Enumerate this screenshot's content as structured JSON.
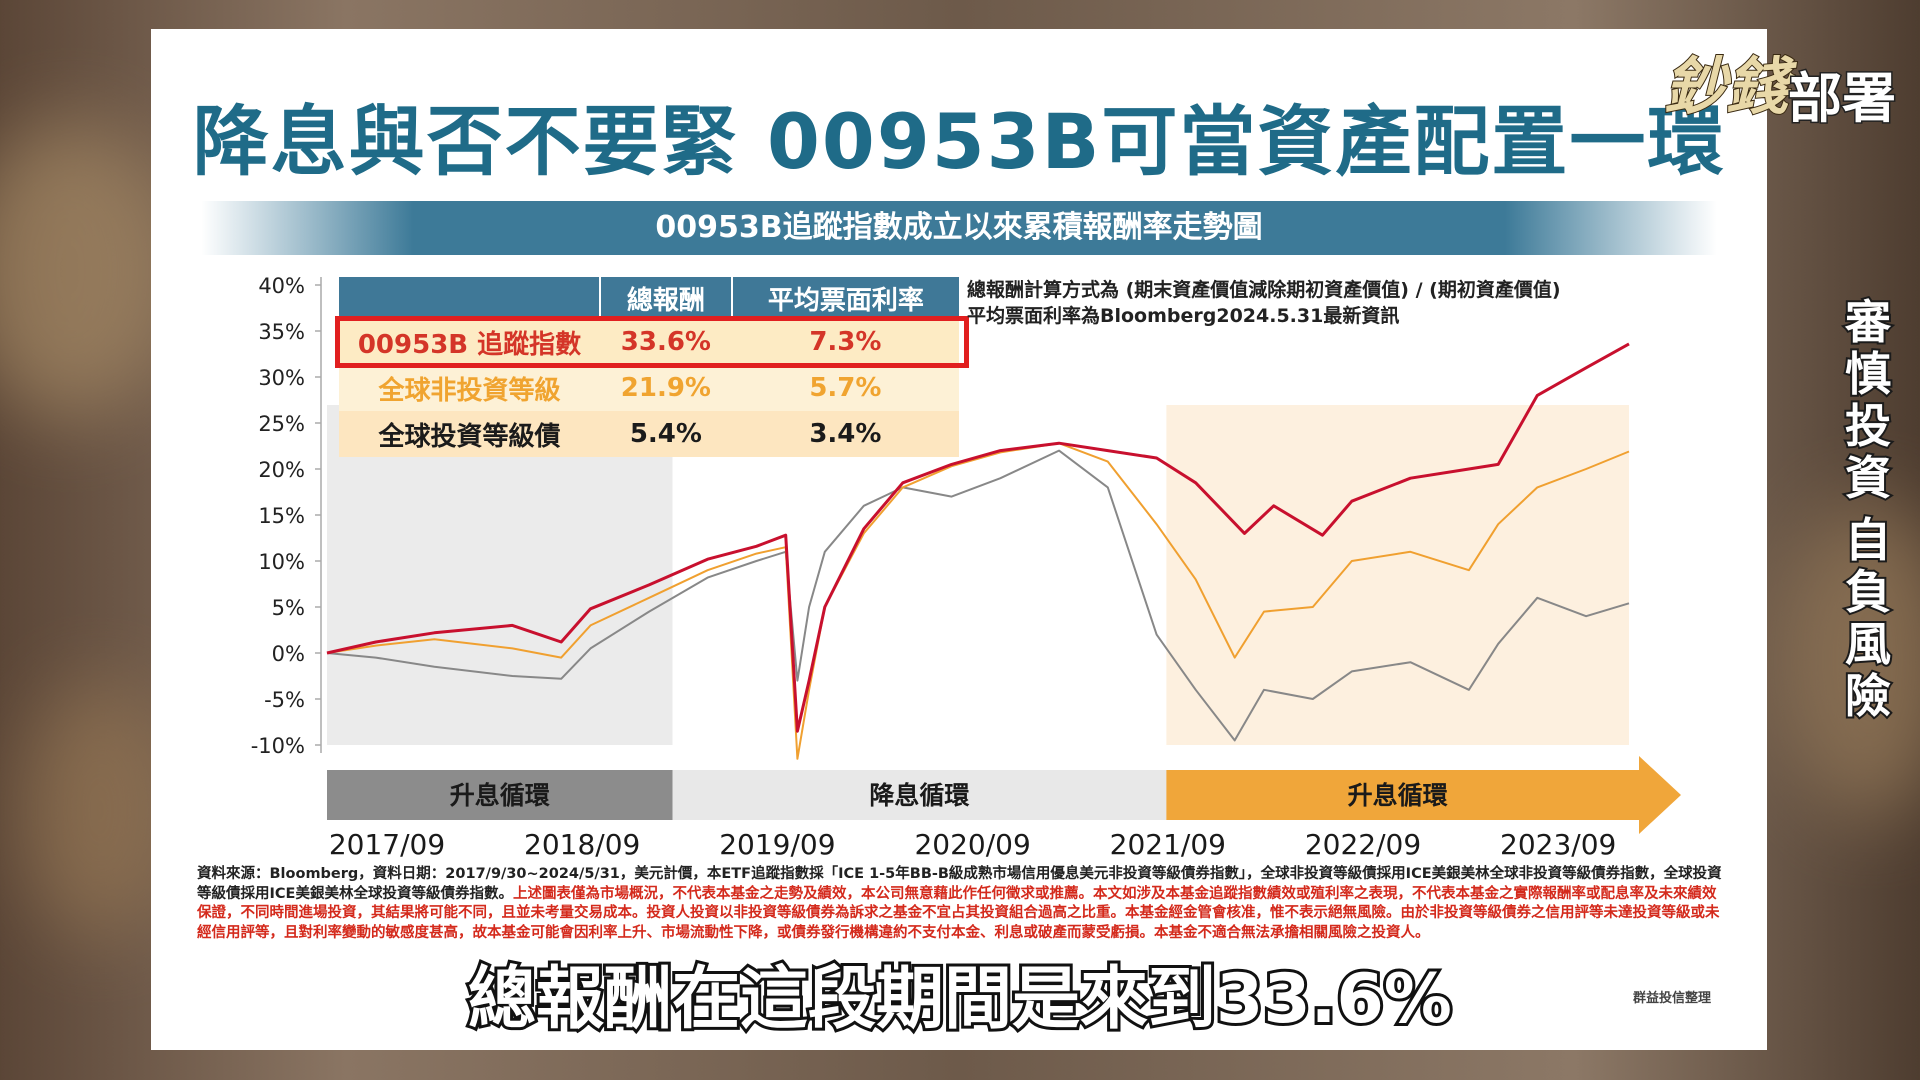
{
  "title": "降息與否不要緊 00953B可當資產配置一環",
  "subtitle": "00953B追蹤指數成立以來累積報酬率走勢圖",
  "logo": {
    "part1": "鈔錢",
    "part2": "部署"
  },
  "side_text_right": [
    "審",
    "慎",
    "投",
    "資"
  ],
  "side_text_right2": [
    "自",
    "負",
    "風",
    "險"
  ],
  "table": {
    "headers": [
      "",
      "總報酬",
      "平均票面利率"
    ],
    "rows": [
      {
        "name": "00953B 追蹤指數",
        "total_return": "33.6%",
        "coupon": "7.3%"
      },
      {
        "name": "全球非投資等級",
        "total_return": "21.9%",
        "coupon": "5.7%"
      },
      {
        "name": "全球投資等級債",
        "total_return": "5.4%",
        "coupon": "3.4%"
      }
    ]
  },
  "notes": [
    "總報酬計算方式為 (期末資產價值減除期初資產價值) / (期初資產價值)",
    "平均票面利率為Bloomberg2024.5.31最新資訊"
  ],
  "cycles": [
    {
      "label": "升息循環",
      "color": "#8c8c8c",
      "start": 2017.75,
      "end": 2019.52
    },
    {
      "label": "降息循環",
      "color": "#e8e8e8",
      "start": 2019.52,
      "end": 2022.05
    },
    {
      "label": "升息循環",
      "color": "#f0a63a",
      "start": 2022.05,
      "end": 2024.42
    }
  ],
  "chart_data": {
    "type": "line",
    "title": "00953B追蹤指數成立以來累積報酬率走勢圖",
    "x_tick_labels": [
      "2017/09",
      "2018/09",
      "2019/09",
      "2020/09",
      "2021/09",
      "2022/09",
      "2023/09"
    ],
    "x_tick_values": [
      2017.75,
      2018.75,
      2019.75,
      2020.75,
      2021.75,
      2022.75,
      2023.75
    ],
    "y_tick_labels": [
      "40%",
      "35%",
      "30%",
      "25%",
      "20%",
      "15%",
      "10%",
      "5%",
      "0%",
      "-5%",
      "-10%"
    ],
    "ylim": [
      -10,
      40
    ],
    "xlim": [
      2017.75,
      2024.42
    ],
    "series": [
      {
        "name": "00953B 追蹤指數",
        "color": "#c8102e",
        "points": [
          [
            2017.75,
            0
          ],
          [
            2018.0,
            1.2
          ],
          [
            2018.3,
            2.2
          ],
          [
            2018.7,
            3.0
          ],
          [
            2018.95,
            1.2
          ],
          [
            2019.1,
            4.8
          ],
          [
            2019.4,
            7.4
          ],
          [
            2019.7,
            10.2
          ],
          [
            2019.95,
            11.6
          ],
          [
            2020.1,
            12.8
          ],
          [
            2020.16,
            -8.5
          ],
          [
            2020.22,
            -3.0
          ],
          [
            2020.3,
            5.0
          ],
          [
            2020.5,
            13.5
          ],
          [
            2020.7,
            18.5
          ],
          [
            2020.95,
            20.5
          ],
          [
            2021.2,
            22.0
          ],
          [
            2021.5,
            22.8
          ],
          [
            2021.75,
            22.0
          ],
          [
            2022.0,
            21.2
          ],
          [
            2022.2,
            18.5
          ],
          [
            2022.45,
            13.0
          ],
          [
            2022.6,
            16.0
          ],
          [
            2022.85,
            12.8
          ],
          [
            2023.0,
            16.5
          ],
          [
            2023.3,
            19.0
          ],
          [
            2023.6,
            20.0
          ],
          [
            2023.75,
            20.5
          ],
          [
            2023.95,
            28.0
          ],
          [
            2024.2,
            31.0
          ],
          [
            2024.42,
            33.6
          ]
        ]
      },
      {
        "name": "全球非投資等級",
        "color": "#f0a030",
        "points": [
          [
            2017.75,
            0
          ],
          [
            2018.0,
            0.8
          ],
          [
            2018.3,
            1.5
          ],
          [
            2018.7,
            0.5
          ],
          [
            2018.95,
            -0.5
          ],
          [
            2019.1,
            3.0
          ],
          [
            2019.4,
            6.0
          ],
          [
            2019.7,
            9.0
          ],
          [
            2019.95,
            10.8
          ],
          [
            2020.1,
            11.5
          ],
          [
            2020.16,
            -11.5
          ],
          [
            2020.22,
            -4.0
          ],
          [
            2020.3,
            5.0
          ],
          [
            2020.5,
            13.0
          ],
          [
            2020.7,
            18.0
          ],
          [
            2020.95,
            20.3
          ],
          [
            2021.2,
            21.8
          ],
          [
            2021.5,
            22.8
          ],
          [
            2021.75,
            20.8
          ],
          [
            2022.0,
            14.0
          ],
          [
            2022.2,
            8.0
          ],
          [
            2022.4,
            -0.5
          ],
          [
            2022.55,
            4.5
          ],
          [
            2022.8,
            5.0
          ],
          [
            2023.0,
            10.0
          ],
          [
            2023.3,
            11.0
          ],
          [
            2023.6,
            9.0
          ],
          [
            2023.75,
            14.0
          ],
          [
            2023.95,
            18.0
          ],
          [
            2024.2,
            20.0
          ],
          [
            2024.42,
            21.9
          ]
        ]
      },
      {
        "name": "全球投資等級債",
        "color": "#888888",
        "points": [
          [
            2017.75,
            0
          ],
          [
            2018.0,
            -0.5
          ],
          [
            2018.3,
            -1.5
          ],
          [
            2018.7,
            -2.5
          ],
          [
            2018.95,
            -2.8
          ],
          [
            2019.1,
            0.5
          ],
          [
            2019.4,
            4.5
          ],
          [
            2019.7,
            8.2
          ],
          [
            2019.95,
            10.0
          ],
          [
            2020.1,
            11.0
          ],
          [
            2020.16,
            -3.0
          ],
          [
            2020.22,
            5.0
          ],
          [
            2020.3,
            11.0
          ],
          [
            2020.5,
            16.0
          ],
          [
            2020.7,
            18.0
          ],
          [
            2020.95,
            17.0
          ],
          [
            2021.2,
            19.0
          ],
          [
            2021.5,
            22.0
          ],
          [
            2021.75,
            18.0
          ],
          [
            2022.0,
            2.0
          ],
          [
            2022.2,
            -4.0
          ],
          [
            2022.4,
            -9.5
          ],
          [
            2022.55,
            -4.0
          ],
          [
            2022.8,
            -5.0
          ],
          [
            2023.0,
            -2.0
          ],
          [
            2023.3,
            -1.0
          ],
          [
            2023.6,
            -4.0
          ],
          [
            2023.75,
            1.0
          ],
          [
            2023.95,
            6.0
          ],
          [
            2024.2,
            4.0
          ],
          [
            2024.42,
            5.4
          ]
        ]
      }
    ]
  },
  "disclaimer": {
    "black": "資料來源：Bloomberg，資料日期：2017/9/30~2024/5/31，美元計價，本ETF追蹤指數採「ICE 1-5年BB-B級成熟市場信用優息美元非投資等級債券指數」，全球非投資等級債採用ICE美銀美林全球非投資等級債券指數，全球投資等級債採用ICE美銀美林全球投資等級債券指數。",
    "red": "上述圖表僅為市場概況，不代表本基金之走勢及績效，本公司無意藉此作任何徵求或推薦。本文如涉及本基金追蹤指數績效或殖利率之表現，不代表本基金之實際報酬率或配息率及未來績效保證，不同時間進場投資，其結果將可能不同，且並未考量交易成本。投資人投資以非投資等級債券為訴求之基金不宜占其投資組合過高之比重。本基金經金管會核准，惟不表示絕無風險。由於非投資等級債券之信用評等未達投資等級或未經信用評等，且對利率變動的敏感度甚高，故本基金可能會因利率上升、市場流動性下降，或債券發行機構違約不支付本金、利息或破產而蒙受虧損。本基金不適合無法承擔相關風險之投資人。"
  },
  "credit": "群益投信整理",
  "caption": "總報酬在這段期間是來到33.6%"
}
